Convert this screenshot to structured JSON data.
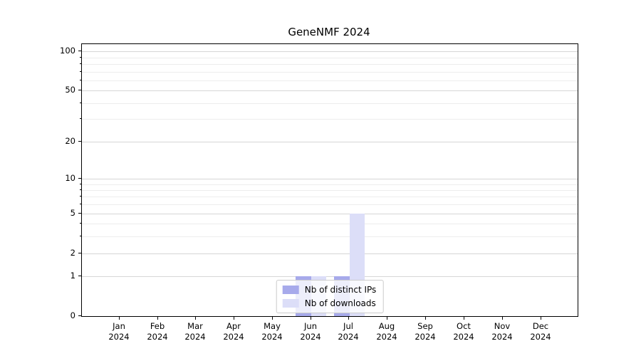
{
  "title": "GeneNMF 2024",
  "chart_data": {
    "type": "bar",
    "title": "GeneNMF 2024",
    "categories": [
      "Jan 2024",
      "Feb 2024",
      "Mar 2024",
      "Apr 2024",
      "May 2024",
      "Jun 2024",
      "Jul 2024",
      "Aug 2024",
      "Sep 2024",
      "Oct 2024",
      "Nov 2024",
      "Dec 2024"
    ],
    "series": [
      {
        "name": "Nb of distinct IPs",
        "color": "#a7aaeb",
        "values": [
          0,
          0,
          0,
          0,
          0,
          1,
          1,
          0,
          0,
          0,
          0,
          0
        ]
      },
      {
        "name": "Nb of downloads",
        "color": "#dcdef8",
        "values": [
          0,
          0,
          0,
          0,
          0,
          1,
          5,
          0,
          0,
          0,
          0,
          0
        ]
      }
    ],
    "yscale": "log1p",
    "ylim": [
      0,
      113.7
    ],
    "yticks": [
      0,
      1,
      2,
      5,
      10,
      20,
      50,
      100
    ],
    "minor_yticks": [
      3,
      4,
      6,
      7,
      8,
      9,
      30,
      40,
      60,
      70,
      80,
      90
    ],
    "grid": "horizontal",
    "legend_position": "lower center"
  },
  "colors": {
    "background": "#ffffff",
    "spine": "#000000",
    "grid_major": "#d6d6d6",
    "grid_minor": "#ededed",
    "tick_text": "#000000",
    "legend_border": "#cccccc",
    "legend_background": "rgba(255,255,255,0.8)"
  }
}
